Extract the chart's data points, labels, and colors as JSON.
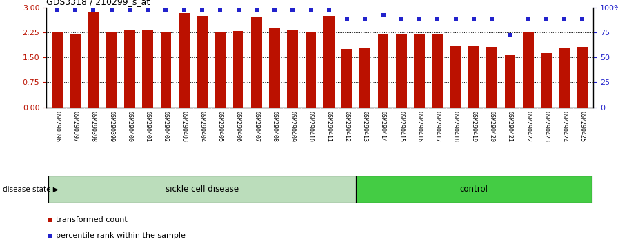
{
  "title": "GDS3318 / 210299_s_at",
  "samples": [
    "GSM290396",
    "GSM290397",
    "GSM290398",
    "GSM290399",
    "GSM290400",
    "GSM290401",
    "GSM290402",
    "GSM290403",
    "GSM290404",
    "GSM290405",
    "GSM290406",
    "GSM290407",
    "GSM290408",
    "GSM290409",
    "GSM290410",
    "GSM290411",
    "GSM290412",
    "GSM290413",
    "GSM290414",
    "GSM290415",
    "GSM290416",
    "GSM290417",
    "GSM290418",
    "GSM290419",
    "GSM290420",
    "GSM290421",
    "GSM290422",
    "GSM290423",
    "GSM290424",
    "GSM290425"
  ],
  "bar_values": [
    2.25,
    2.2,
    2.85,
    2.27,
    2.32,
    2.3,
    2.25,
    2.82,
    2.75,
    2.25,
    2.28,
    2.72,
    2.38,
    2.32,
    2.27,
    2.75,
    1.75,
    1.8,
    2.18,
    2.2,
    2.2,
    2.18,
    1.83,
    1.83,
    1.82,
    1.57,
    2.27,
    1.63,
    1.77,
    1.82
  ],
  "percentile_values": [
    97,
    97,
    97,
    97,
    97,
    97,
    97,
    97,
    97,
    97,
    97,
    97,
    97,
    97,
    97,
    97,
    88,
    88,
    92,
    88,
    88,
    88,
    88,
    88,
    88,
    72,
    88,
    88,
    88,
    88
  ],
  "sickle_count": 17,
  "control_count": 13,
  "bar_color": "#bb1100",
  "percentile_color": "#2222cc",
  "sickle_color": "#bbddbb",
  "control_color": "#44cc44",
  "yticks_left": [
    0,
    0.75,
    1.5,
    2.25,
    3
  ],
  "yticks_right": [
    0,
    25,
    50,
    75,
    100
  ],
  "ylim": [
    0,
    3
  ],
  "right_ylim": [
    0,
    100
  ],
  "legend_label_bar": "transformed count",
  "legend_label_pct": "percentile rank within the sample",
  "disease_state_label": "disease state",
  "sickle_label": "sickle cell disease",
  "control_label": "control",
  "tick_bg_color": "#cccccc",
  "plot_bg_color": "#ffffff"
}
